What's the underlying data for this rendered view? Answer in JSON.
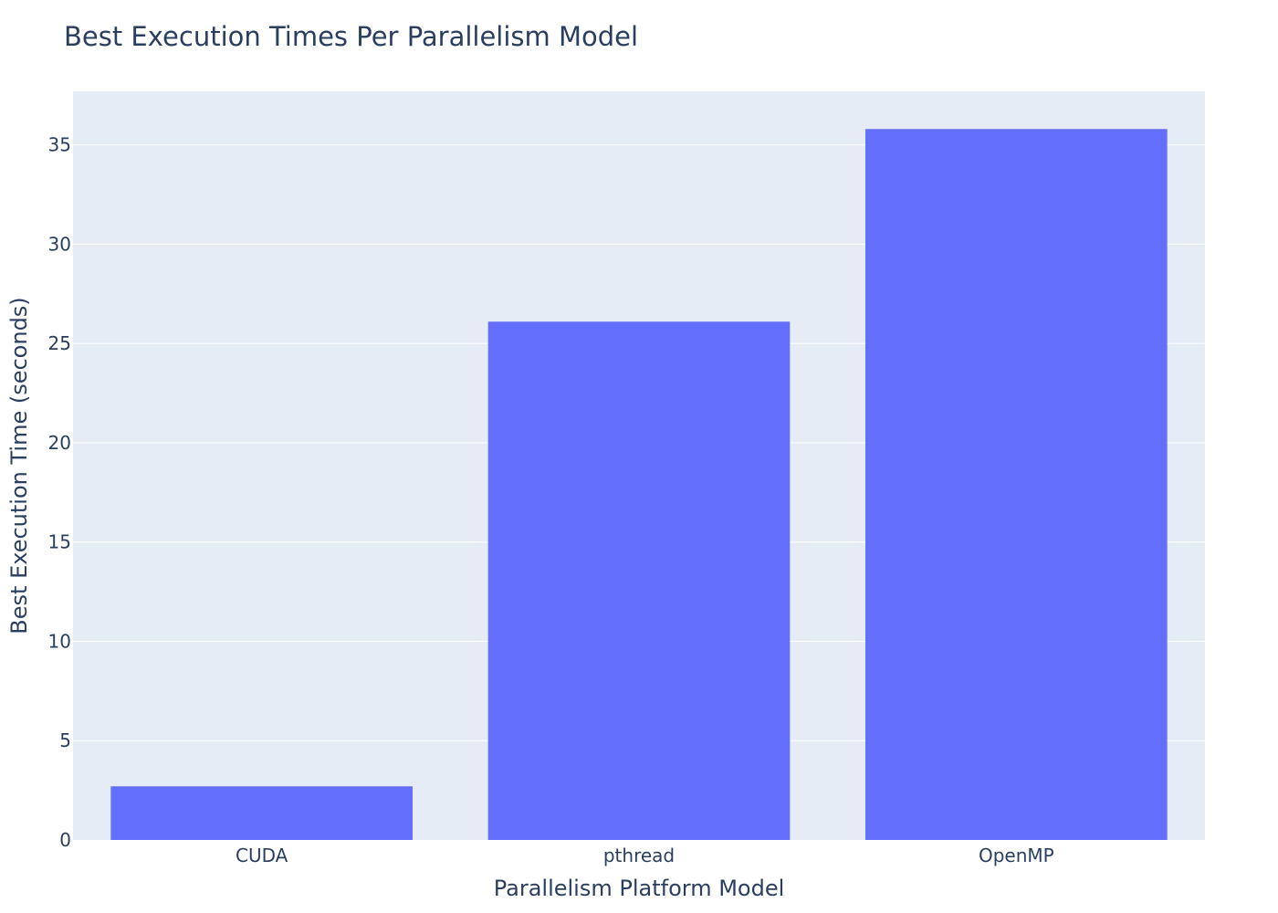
{
  "chart_data": {
    "type": "bar",
    "title": "Best Execution Times Per Parallelism Model",
    "xlabel": "Parallelism Platform Model",
    "ylabel": "Best Execution Time (seconds)",
    "categories": [
      "CUDA",
      "pthread",
      "OpenMP"
    ],
    "values": [
      2.7,
      26.1,
      35.8
    ],
    "ylim": [
      0,
      37.7
    ],
    "yticks": [
      0,
      5,
      10,
      15,
      20,
      25,
      30,
      35
    ],
    "grid": true,
    "colors": {
      "bar": "#636efa",
      "plot_bg": "#e5ecf6",
      "grid": "#ffffff",
      "text": "#2a3f5f"
    }
  }
}
